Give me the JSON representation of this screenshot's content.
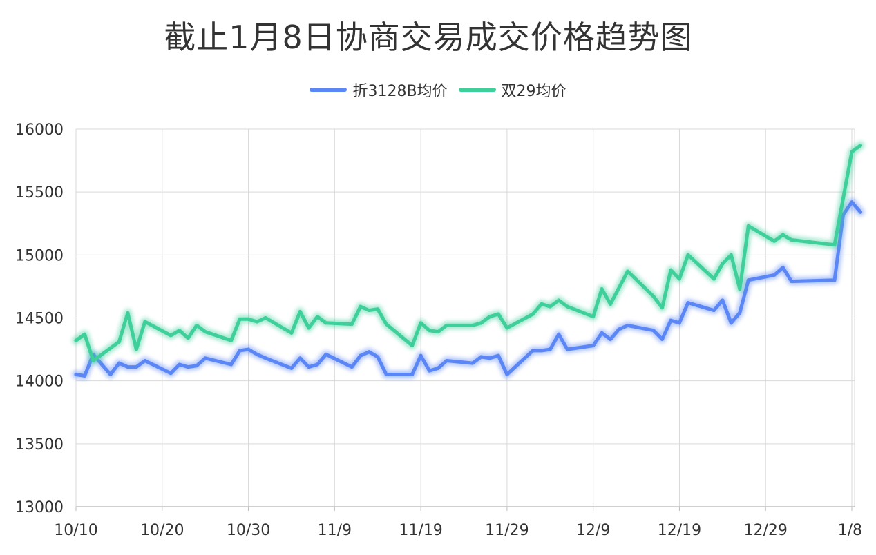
{
  "chart_data": {
    "type": "line",
    "title": "截止1月8日协商交易成交价格趋势图",
    "xlabel": "",
    "ylabel": "",
    "ylim": [
      13000,
      16000
    ],
    "yticks": [
      13000,
      13500,
      14000,
      14500,
      15000,
      15500,
      16000
    ],
    "xticks": [
      "10/10",
      "10/20",
      "10/30",
      "11/9",
      "11/19",
      "11/29",
      "12/9",
      "12/19",
      "12/29",
      "1/8"
    ],
    "x_range": [
      "10/10",
      "1/8"
    ],
    "grid": true,
    "legend_position": "top-center",
    "series": [
      {
        "name": "折3128B均价",
        "color": "#5b86f5",
        "points": [
          [
            "10/10",
            14050
          ],
          [
            "10/11",
            14040
          ],
          [
            "10/12",
            14210
          ],
          [
            "10/13",
            14130
          ],
          [
            "10/14",
            14050
          ],
          [
            "10/15",
            14140
          ],
          [
            "10/16",
            14110
          ],
          [
            "10/17",
            14110
          ],
          [
            "10/18",
            14160
          ],
          [
            "10/21",
            14060
          ],
          [
            "10/22",
            14130
          ],
          [
            "10/23",
            14110
          ],
          [
            "10/24",
            14120
          ],
          [
            "10/25",
            14180
          ],
          [
            "10/28",
            14130
          ],
          [
            "10/29",
            14240
          ],
          [
            "10/30",
            14250
          ],
          [
            "10/31",
            14210
          ],
          [
            "11/1",
            14180
          ],
          [
            "11/4",
            14100
          ],
          [
            "11/5",
            14180
          ],
          [
            "11/6",
            14110
          ],
          [
            "11/7",
            14130
          ],
          [
            "11/8",
            14210
          ],
          [
            "11/11",
            14110
          ],
          [
            "11/12",
            14200
          ],
          [
            "11/13",
            14230
          ],
          [
            "11/14",
            14190
          ],
          [
            "11/15",
            14050
          ],
          [
            "11/18",
            14050
          ],
          [
            "11/19",
            14200
          ],
          [
            "11/20",
            14080
          ],
          [
            "11/21",
            14100
          ],
          [
            "11/22",
            14160
          ],
          [
            "11/25",
            14140
          ],
          [
            "11/26",
            14190
          ],
          [
            "11/27",
            14180
          ],
          [
            "11/28",
            14200
          ],
          [
            "11/29",
            14050
          ],
          [
            "12/2",
            14240
          ],
          [
            "12/3",
            14240
          ],
          [
            "12/4",
            14250
          ],
          [
            "12/5",
            14370
          ],
          [
            "12/6",
            14250
          ],
          [
            "12/9",
            14280
          ],
          [
            "12/10",
            14380
          ],
          [
            "12/11",
            14330
          ],
          [
            "12/12",
            14410
          ],
          [
            "12/13",
            14440
          ],
          [
            "12/16",
            14400
          ],
          [
            "12/17",
            14330
          ],
          [
            "12/18",
            14480
          ],
          [
            "12/19",
            14460
          ],
          [
            "12/20",
            14620
          ],
          [
            "12/23",
            14560
          ],
          [
            "12/24",
            14640
          ],
          [
            "12/25",
            14460
          ],
          [
            "12/26",
            14540
          ],
          [
            "12/27",
            14800
          ],
          [
            "12/30",
            14840
          ],
          [
            "12/31",
            14900
          ],
          [
            "1/1",
            14790
          ],
          [
            "1/6",
            14800
          ],
          [
            "1/7",
            15320
          ],
          [
            "1/8",
            15420
          ],
          [
            "1/9",
            15340
          ]
        ]
      },
      {
        "name": "双29均价",
        "color": "#3ecf9b",
        "points": [
          [
            "10/10",
            14320
          ],
          [
            "10/11",
            14370
          ],
          [
            "10/12",
            14160
          ],
          [
            "10/15",
            14310
          ],
          [
            "10/16",
            14540
          ],
          [
            "10/17",
            14250
          ],
          [
            "10/18",
            14470
          ],
          [
            "10/21",
            14360
          ],
          [
            "10/22",
            14400
          ],
          [
            "10/23",
            14340
          ],
          [
            "10/24",
            14440
          ],
          [
            "10/25",
            14390
          ],
          [
            "10/28",
            14320
          ],
          [
            "10/29",
            14490
          ],
          [
            "10/30",
            14490
          ],
          [
            "10/31",
            14470
          ],
          [
            "11/1",
            14500
          ],
          [
            "11/4",
            14380
          ],
          [
            "11/5",
            14550
          ],
          [
            "11/6",
            14420
          ],
          [
            "11/7",
            14510
          ],
          [
            "11/8",
            14460
          ],
          [
            "11/11",
            14450
          ],
          [
            "11/12",
            14590
          ],
          [
            "11/13",
            14560
          ],
          [
            "11/14",
            14570
          ],
          [
            "11/15",
            14450
          ],
          [
            "11/18",
            14280
          ],
          [
            "11/19",
            14460
          ],
          [
            "11/20",
            14400
          ],
          [
            "11/21",
            14390
          ],
          [
            "11/22",
            14440
          ],
          [
            "11/25",
            14440
          ],
          [
            "11/26",
            14460
          ],
          [
            "11/27",
            14510
          ],
          [
            "11/28",
            14530
          ],
          [
            "11/29",
            14420
          ],
          [
            "12/2",
            14530
          ],
          [
            "12/3",
            14610
          ],
          [
            "12/4",
            14590
          ],
          [
            "12/5",
            14640
          ],
          [
            "12/6",
            14590
          ],
          [
            "12/9",
            14510
          ],
          [
            "12/10",
            14730
          ],
          [
            "12/11",
            14610
          ],
          [
            "12/13",
            14870
          ],
          [
            "12/16",
            14670
          ],
          [
            "12/17",
            14580
          ],
          [
            "12/18",
            14880
          ],
          [
            "12/19",
            14810
          ],
          [
            "12/20",
            15000
          ],
          [
            "12/23",
            14810
          ],
          [
            "12/24",
            14930
          ],
          [
            "12/25",
            15000
          ],
          [
            "12/26",
            14730
          ],
          [
            "12/27",
            15230
          ],
          [
            "12/30",
            15110
          ],
          [
            "12/31",
            15160
          ],
          [
            "1/1",
            15120
          ],
          [
            "1/6",
            15080
          ],
          [
            "1/7",
            15450
          ],
          [
            "1/8",
            15820
          ],
          [
            "1/9",
            15870
          ]
        ]
      }
    ]
  }
}
